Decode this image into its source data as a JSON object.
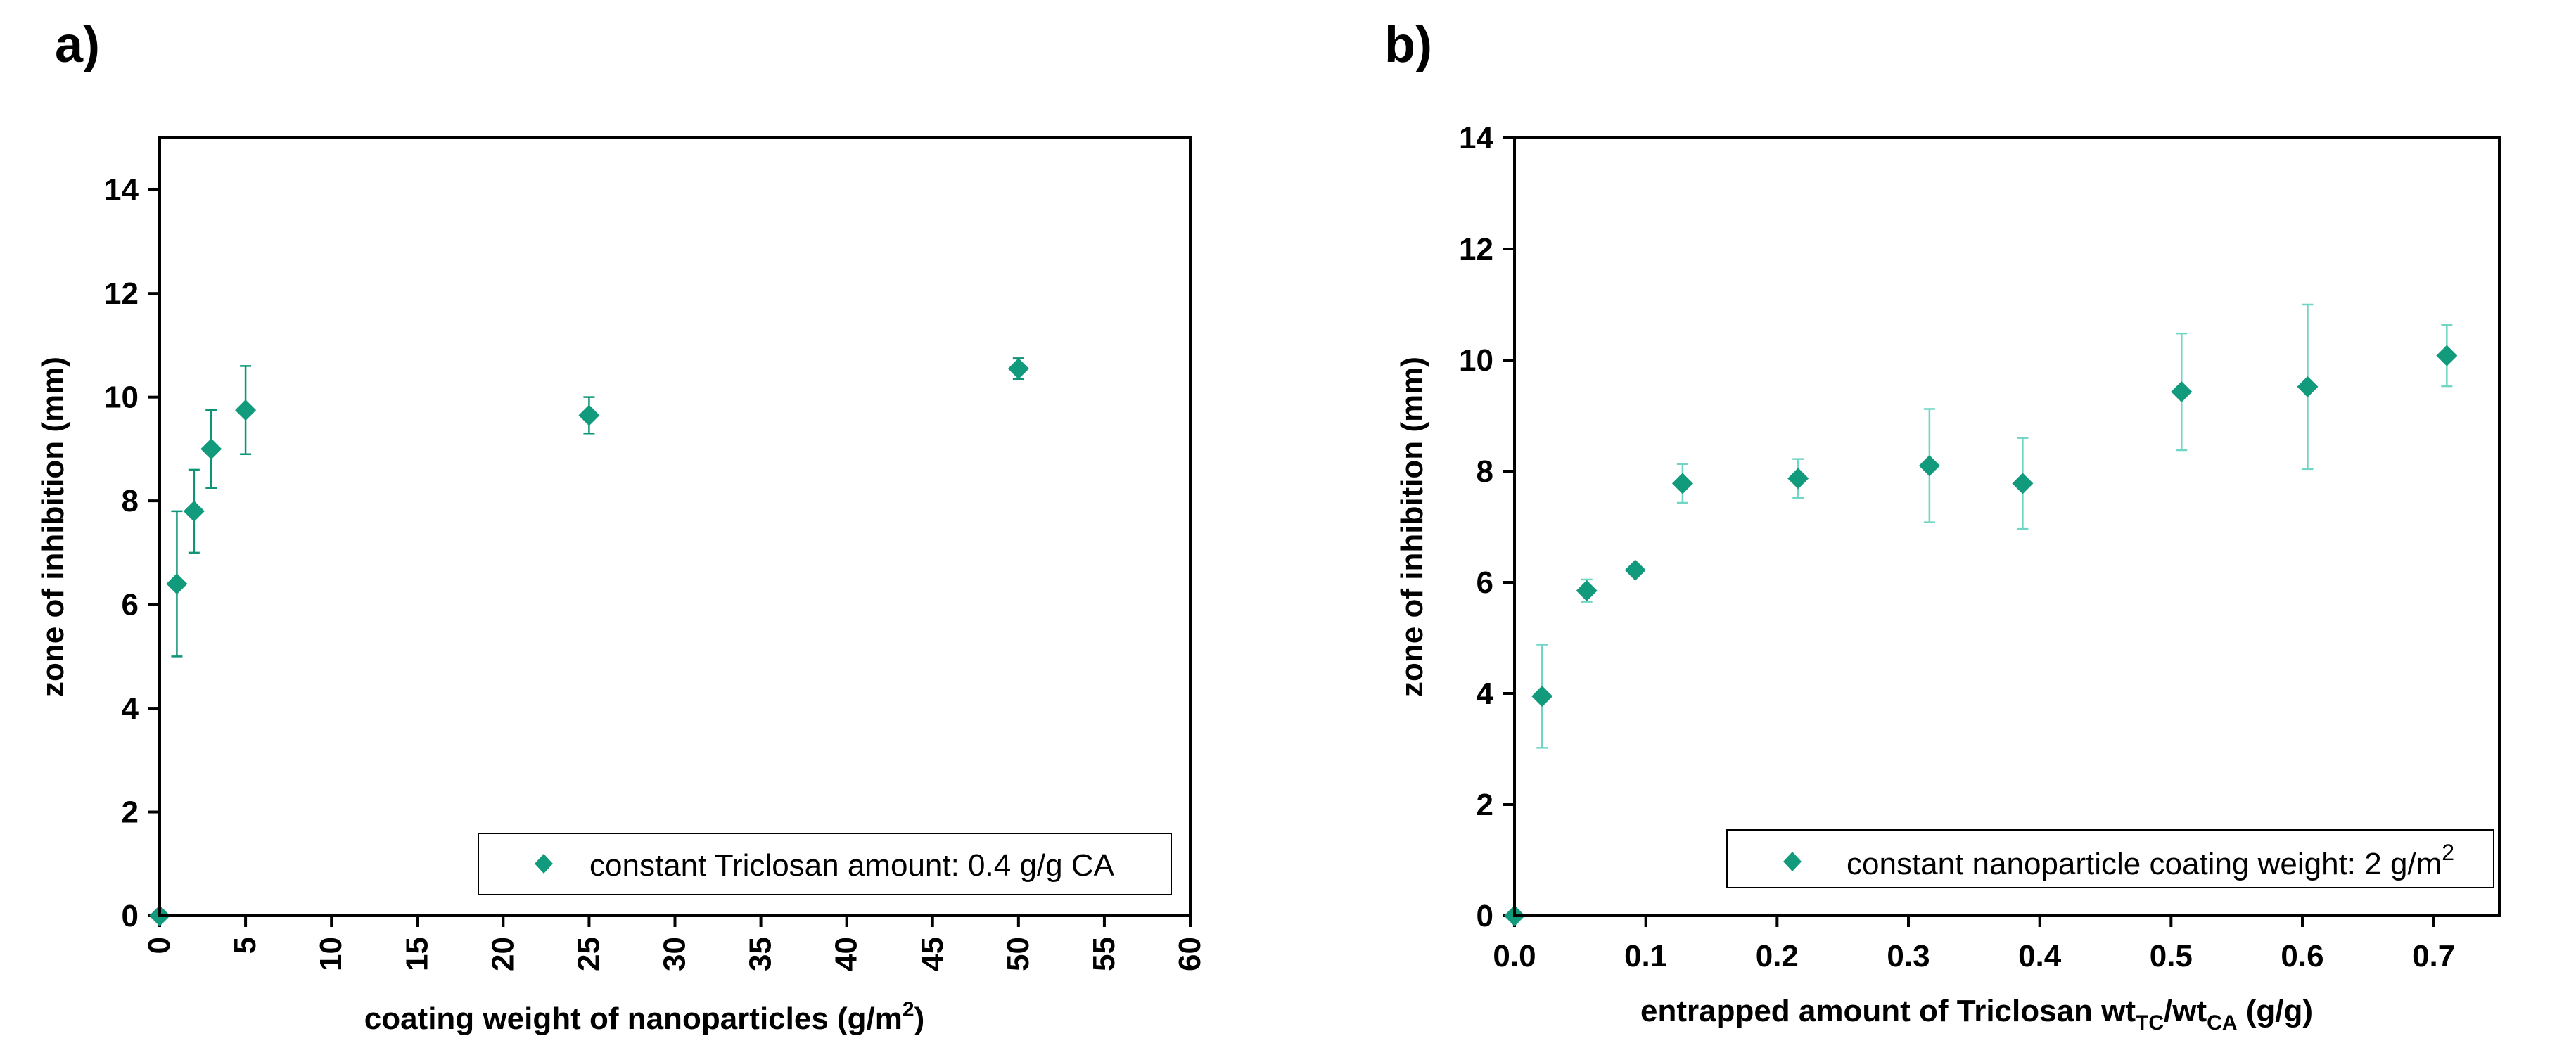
{
  "colors": {
    "marker": "#119a7c",
    "errorbar_a": "#0e9479",
    "errorbar_b": "#6fd5c4"
  },
  "chart_data": [
    {
      "type": "scatter",
      "panel_label": "a)",
      "xlabel_main": "coating weight of nanoparticles (g/m",
      "xlabel_sup": "2",
      "xlabel_end": ")",
      "ylabel": "zone of inhibition (mm)",
      "xlim": [
        0,
        60
      ],
      "ylim": [
        0,
        15
      ],
      "xticks": [
        0,
        5,
        10,
        15,
        20,
        25,
        30,
        35,
        40,
        45,
        50,
        55,
        60
      ],
      "xtick_labels": [
        "0",
        "5",
        "10",
        "15",
        "20",
        "25",
        "30",
        "35",
        "40",
        "45",
        "50",
        "55",
        "60"
      ],
      "yticks": [
        0,
        2,
        4,
        6,
        8,
        10,
        12,
        14
      ],
      "ytick_labels": [
        "0",
        "2",
        "4",
        "6",
        "8",
        "10",
        "12",
        "14"
      ],
      "legend": {
        "text": "constant Triclosan amount: 0.4 g/g CA",
        "position": "bottom-right"
      },
      "series": [
        {
          "name": "constant Triclosan amount: 0.4 g/g CA",
          "x": [
            0,
            1,
            2,
            3,
            5,
            25,
            50
          ],
          "y": [
            0,
            6.4,
            7.8,
            9.0,
            9.75,
            9.65,
            10.55
          ],
          "err": [
            0,
            1.4,
            0.8,
            0.75,
            0.85,
            0.35,
            0.2
          ]
        }
      ]
    },
    {
      "type": "scatter",
      "panel_label": "b)",
      "xlabel_pre": "entrapped amount of Triclosan wt",
      "xlabel_sub1": "TC",
      "xlabel_mid": "/wt",
      "xlabel_sub2": "CA",
      "xlabel_post": " (g/g)",
      "ylabel": "zone of inhibition (mm)",
      "xlim": [
        0,
        0.75
      ],
      "ylim": [
        0,
        14
      ],
      "xticks": [
        0,
        0.1,
        0.2,
        0.3,
        0.4,
        0.5,
        0.6,
        0.7
      ],
      "xtick_labels": [
        "0.0",
        "0.1",
        "0.2",
        "0.3",
        "0.4",
        "0.5",
        "0.6",
        "0.7"
      ],
      "yticks": [
        0,
        2,
        4,
        6,
        8,
        10,
        12,
        14
      ],
      "ytick_labels": [
        "0",
        "2",
        "4",
        "6",
        "8",
        "10",
        "12",
        "14"
      ],
      "legend": {
        "text_main": "constant nanoparticle coating weight: 2 g/m",
        "text_sup": "2",
        "position": "bottom-right"
      },
      "series": [
        {
          "name": "constant nanoparticle coating weight: 2 g/m2",
          "x": [
            0,
            0.021,
            0.055,
            0.092,
            0.128,
            0.216,
            0.316,
            0.387,
            0.508,
            0.604,
            0.71
          ],
          "y": [
            0,
            3.95,
            5.85,
            6.22,
            7.78,
            7.87,
            8.1,
            7.78,
            9.43,
            9.52,
            10.08
          ],
          "err": [
            0,
            0.93,
            0.2,
            0.05,
            0.35,
            0.35,
            1.02,
            0.82,
            1.05,
            1.48,
            0.55
          ]
        }
      ]
    }
  ]
}
